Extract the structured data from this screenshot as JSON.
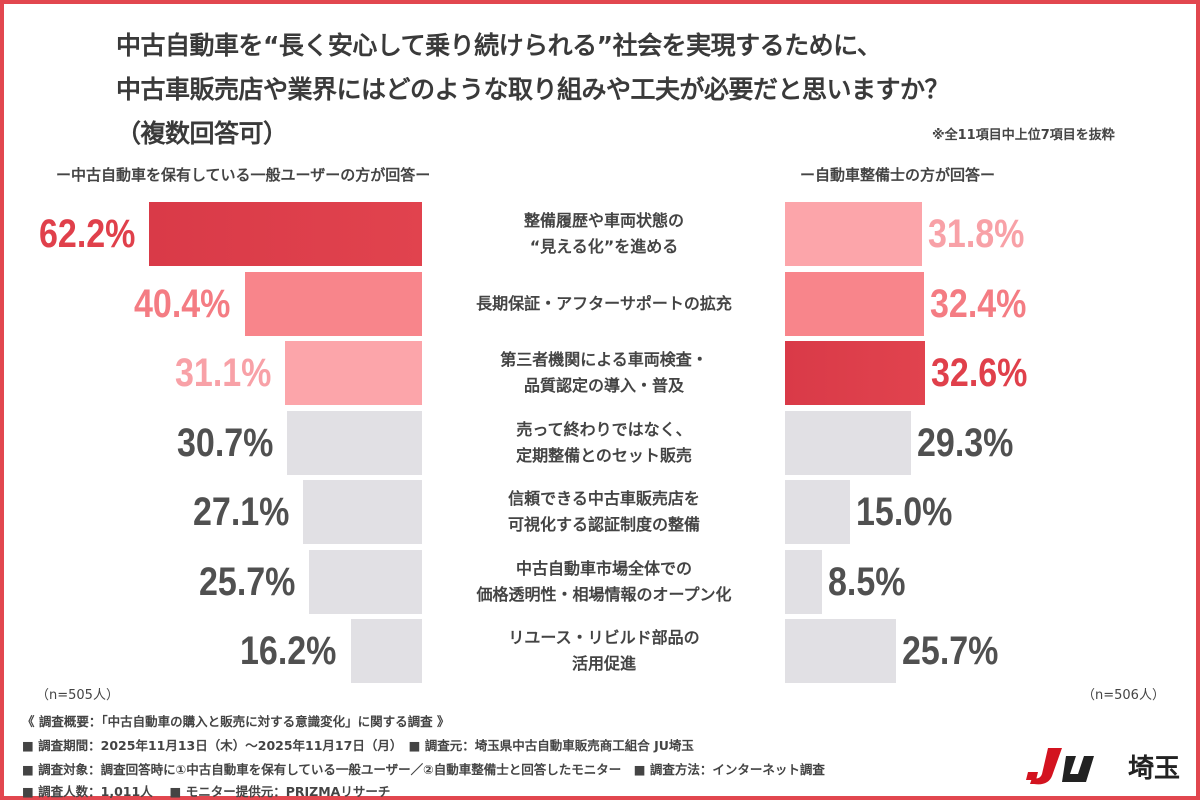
{
  "chart_data": {
    "type": "bar",
    "orientation": "horizontal-butterfly",
    "title_lines": [
      "中古自動車を“長く安心して乗り続けられる”社会を実現するために、",
      "中古車販売店や業界にはどのような取り組みや工夫が必要だと思いますか？",
      "（複数回答可）"
    ],
    "note": "※全11項目中上位7項目を抜粋",
    "categories": [
      [
        "整備履歴や車両状態の",
        "“見える化”を進める"
      ],
      [
        "長期保証・アフターサポートの拡充"
      ],
      [
        "第三者機関による車両検査・",
        "品質認定の導入・普及"
      ],
      [
        "売って終わりではなく、",
        "定期整備とのセット販売"
      ],
      [
        "信頼できる中古車販売店を",
        "可視化する認証制度の整備"
      ],
      [
        "中古自動車市場全体での",
        "価格透明性・相場情報のオープン化"
      ],
      [
        "リユース・リビルド部品の",
        "活用促進"
      ]
    ],
    "series": [
      {
        "name": "ー中古自動車を保有している一般ユーザーの方が回答ー",
        "n": "（n=505人）",
        "values": [
          62.2,
          40.4,
          31.1,
          30.7,
          27.1,
          25.7,
          16.2
        ],
        "labels": [
          "62.2%",
          "40.4%",
          "31.1%",
          "30.7%",
          "27.1%",
          "25.7%",
          "16.2%"
        ],
        "ranks": [
          1,
          2,
          3,
          0,
          0,
          0,
          0
        ]
      },
      {
        "name": "ー自動車整備士の方が回答ー",
        "n": "（n=506人）",
        "values": [
          31.8,
          32.4,
          32.6,
          29.3,
          15.0,
          8.5,
          25.7
        ],
        "labels": [
          "31.8%",
          "32.4%",
          "32.6%",
          "29.3%",
          "15.0%",
          "8.5%",
          "25.7%"
        ],
        "ranks": [
          3,
          2,
          1,
          0,
          0,
          0,
          0
        ]
      }
    ],
    "colors": {
      "rank1": "#e1434e",
      "rank2": "#f8858b",
      "rank3": "#fca5aa",
      "other": "#e1e0e4",
      "label1": "#e0404b",
      "label2": "#f47c83",
      "label3": "#f8a1a7",
      "label_other": "#505050"
    }
  },
  "footer": [
    "《 調査概要：「中古自動車の購入と販売に対する意識変化」に関する調査 》",
    "■ 調査期間：2025年11月13日（木）〜2025年11月17日（月）　■ 調査元：埼玉県中古自動車販売商工組合 JU埼玉",
    "■ 調査対象：調査回答時に①中古自動車を保有している一般ユーザー／②自動車整備士と回答したモニター　■ 調査方法：インターネット調査",
    "■ 調査人数：1,011人　 ■ モニター提供元：PRIZMAリサーチ"
  ],
  "logo": {
    "mark": "JU",
    "text": "埼玉"
  }
}
